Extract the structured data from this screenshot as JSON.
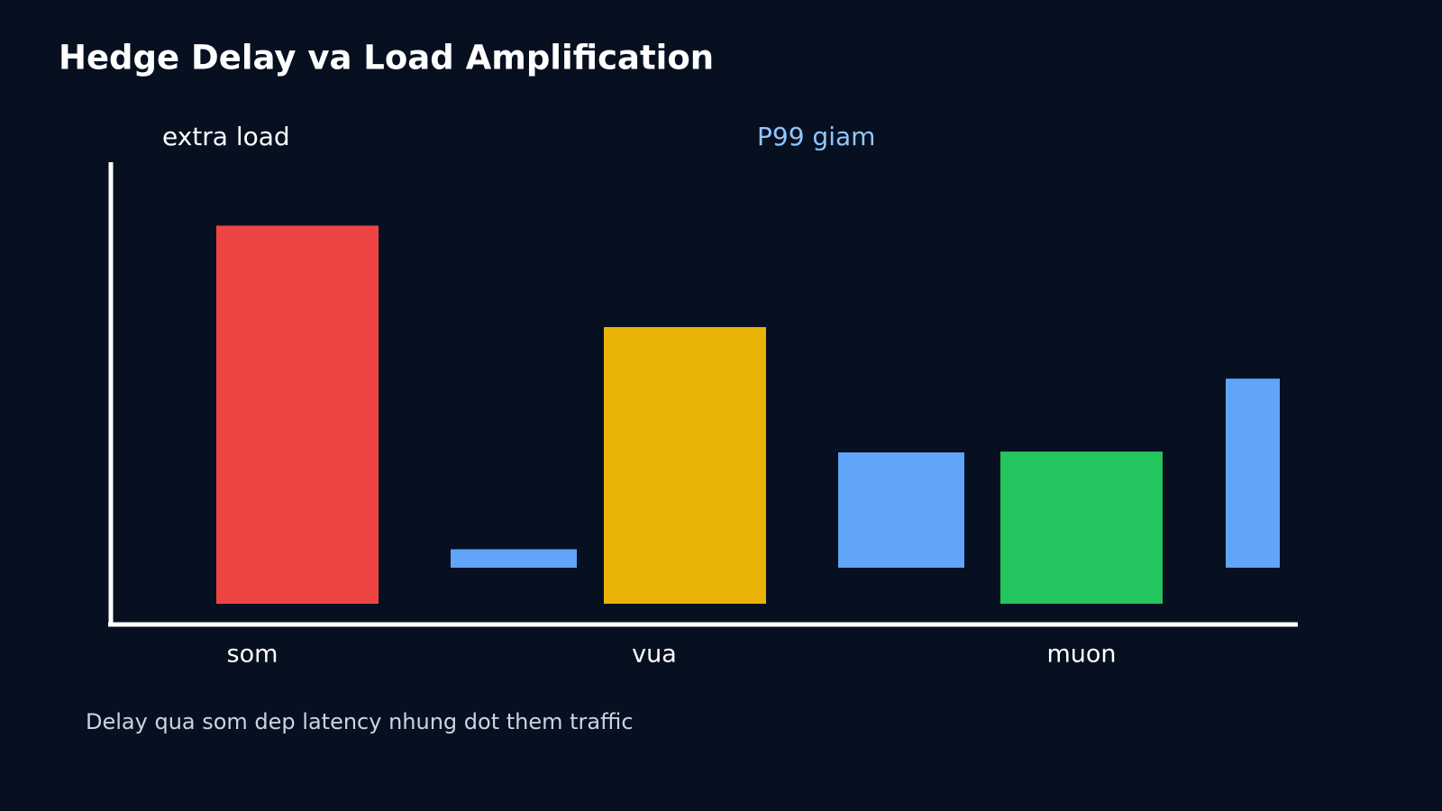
{
  "chart_data": {
    "type": "bar",
    "title": "Hedge Delay va Load Amplification",
    "categories": [
      "som",
      "vua",
      "muon"
    ],
    "series": [
      {
        "name": "extra load",
        "colors": [
          "#ef4444",
          "#eab308",
          "#22c55e"
        ],
        "values": [
          41,
          30,
          16.5
        ]
      },
      {
        "name": "P99 giam",
        "color": "#60a5fa",
        "values": [
          2,
          12.5,
          20.5
        ]
      }
    ],
    "ylim": [
      0,
      47
    ],
    "note": "Delay qua som dep latency nhung dot them traffic"
  }
}
